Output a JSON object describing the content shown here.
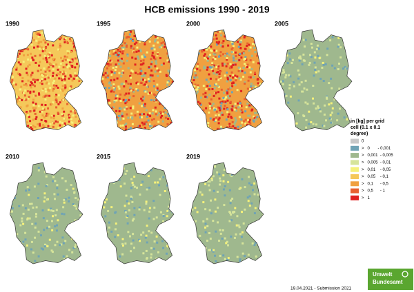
{
  "title": "HCB emissions 1990 - 2019",
  "panels": [
    {
      "label": "1990"
    },
    {
      "label": "1995"
    },
    {
      "label": "2000"
    },
    {
      "label": "2005"
    },
    {
      "label": "2010"
    },
    {
      "label": "2015"
    },
    {
      "label": "2019"
    }
  ],
  "legend": {
    "title_lines": [
      "in [kg] per grid",
      "cell (0.1 x 0.1",
      "degree)"
    ],
    "items": [
      {
        "label": "0",
        "color": "#c8c8c8"
      },
      {
        "label": ">   0       - 0,001",
        "color": "#6fa3b5"
      },
      {
        "label": ">   0,001  - 0,005",
        "color": "#9fb88e"
      },
      {
        "label": ">   0,005  - 0,01",
        "color": "#d6e49a"
      },
      {
        "label": ">   0,01    - 0,05",
        "color": "#f5f17a"
      },
      {
        "label": ">   0,05    - 0,1",
        "color": "#f5c85a"
      },
      {
        "label": ">   0,1      - 0,5",
        "color": "#f0a040"
      },
      {
        "label": ">   0,5      - 1",
        "color": "#e86030"
      },
      {
        "label": ">   1",
        "color": "#e02020"
      }
    ]
  },
  "footer": "19.04.2021 - Submission 2021",
  "logo": {
    "line1": "Umwelt",
    "line2": "Bundesamt"
  }
}
